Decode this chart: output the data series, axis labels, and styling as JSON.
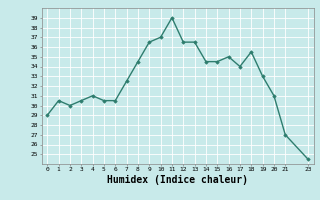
{
  "xlabel": "Humidex (Indice chaleur)",
  "x_values": [
    0,
    1,
    2,
    3,
    4,
    5,
    6,
    7,
    8,
    9,
    10,
    11,
    12,
    13,
    14,
    15,
    16,
    17,
    18,
    19,
    20,
    21,
    23
  ],
  "y_values": [
    29,
    30.5,
    30,
    30.5,
    31,
    30.5,
    30.5,
    32.5,
    34.5,
    36.5,
    37,
    39,
    36.5,
    36.5,
    34.5,
    34.5,
    35,
    34,
    35.5,
    33,
    31,
    27,
    24.5
  ],
  "line_color": "#2e7d6e",
  "marker": "D",
  "marker_size": 1.8,
  "bg_color": "#c8eaea",
  "grid_color": "#ffffff",
  "bottom_bar_color": "#5f9090",
  "ylim": [
    24.0,
    40.0
  ],
  "yticks": [
    25,
    26,
    27,
    28,
    29,
    30,
    31,
    32,
    33,
    34,
    35,
    36,
    37,
    38,
    39
  ],
  "xlim": [
    -0.5,
    23.5
  ],
  "xticks": [
    0,
    1,
    2,
    3,
    4,
    5,
    6,
    7,
    8,
    9,
    10,
    11,
    12,
    13,
    14,
    15,
    16,
    17,
    18,
    19,
    20,
    21,
    23
  ],
  "xtick_labels": [
    "0",
    "1",
    "2",
    "3",
    "4",
    "5",
    "6",
    "7",
    "8",
    "9",
    "10",
    "11",
    "12",
    "13",
    "14",
    "15",
    "16",
    "17",
    "18",
    "19",
    "20",
    "21",
    "23"
  ],
  "line_width": 1.0,
  "tick_fontsize": 4.5,
  "label_fontsize": 6.5,
  "label_fontsize_bold": 7
}
